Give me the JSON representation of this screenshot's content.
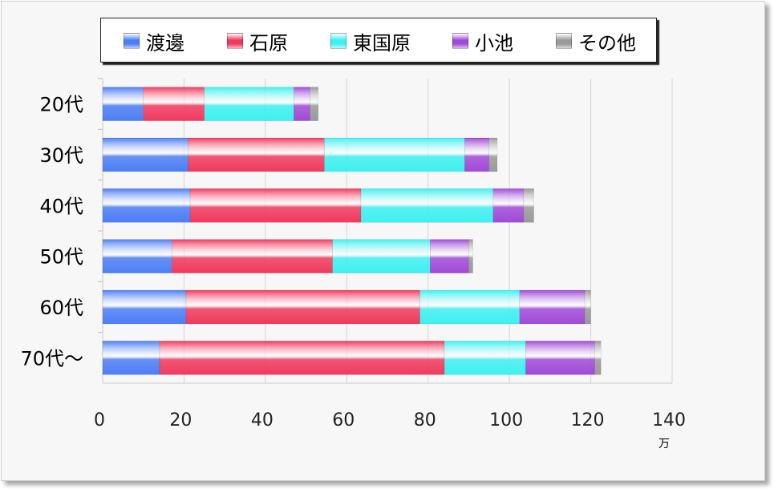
{
  "chart_data": {
    "type": "bar",
    "orientation": "horizontal",
    "stacked": true,
    "categories": [
      "20代",
      "30代",
      "40代",
      "50代",
      "60代",
      "70代〜"
    ],
    "series": [
      {
        "name": "渡邊",
        "color": "#4d7ef5",
        "values": [
          10,
          21,
          21.5,
          17,
          20.5,
          14
        ]
      },
      {
        "name": "石原",
        "color": "#f03a5e",
        "values": [
          15,
          33.5,
          42,
          39.5,
          57.5,
          70
        ]
      },
      {
        "name": "東国原",
        "color": "#3ff0f0",
        "values": [
          22,
          34.5,
          32.5,
          24,
          24.5,
          20
        ]
      },
      {
        "name": "小池",
        "color": "#a04ad8",
        "values": [
          4,
          6,
          7.5,
          9.5,
          16,
          17
        ]
      },
      {
        "name": "その他",
        "color": "#9a9a9a",
        "values": [
          2,
          2,
          2.5,
          1,
          1.5,
          1.5
        ]
      }
    ],
    "xlim": [
      0,
      140
    ],
    "xticks": [
      "0",
      "20",
      "40",
      "60",
      "80",
      "100",
      "120",
      "140"
    ],
    "x_unit": "万",
    "grid": true,
    "legend_position": "top"
  }
}
